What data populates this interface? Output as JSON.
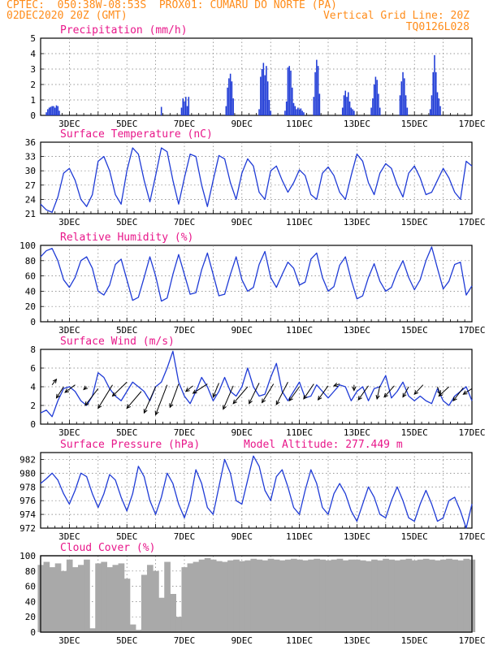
{
  "header": {
    "line1_left": "CPTEC:  050:38W-08:53S  PROX01: CUMARU DO NORTE (PA)",
    "line2_left": "02DEC2020 20Z (GMT)",
    "line2_right": "Vertical Grid Line: 20Z",
    "line3_right": "TQ0126L028"
  },
  "colors": {
    "header": "#ff8c1a",
    "panel_title": "#e8178a",
    "series": "#1f3bd6",
    "cloud": "#a9a9a9",
    "wind_arrow": "#000000"
  },
  "chart_data": [
    {
      "type": "bar",
      "title": "Precipitation (mm/h)",
      "ylim": [
        0,
        5
      ],
      "yticks": [
        "0",
        "1",
        "2",
        "3",
        "4",
        "5"
      ],
      "xticks": [
        "3DEC",
        "5DEC",
        "7DEC",
        "9DEC",
        "11DEC",
        "13DEC",
        "15DEC",
        "17DEC"
      ],
      "grid": true,
      "x": [
        2.2,
        2.25,
        2.3,
        2.35,
        2.4,
        2.45,
        2.5,
        2.55,
        2.6,
        2.65,
        6.2,
        6.9,
        6.95,
        7.0,
        7.05,
        7.1,
        7.15,
        8.45,
        8.5,
        8.55,
        8.6,
        8.65,
        8.7,
        9.6,
        9.65,
        9.7,
        9.75,
        9.8,
        9.85,
        9.9,
        9.95,
        10.0,
        10.5,
        10.55,
        10.6,
        10.65,
        10.7,
        10.75,
        10.8,
        10.85,
        10.9,
        10.95,
        11.0,
        11.05,
        11.1,
        11.15,
        11.5,
        11.55,
        11.6,
        11.65,
        11.7,
        12.5,
        12.55,
        12.6,
        12.65,
        12.7,
        12.75,
        12.8,
        12.85,
        12.9,
        13.5,
        13.55,
        13.6,
        13.65,
        13.7,
        13.75,
        13.8,
        14.5,
        14.55,
        14.6,
        14.65,
        14.7,
        14.75,
        15.55,
        15.6,
        15.65,
        15.7,
        15.75,
        15.8,
        15.85,
        15.9
      ],
      "values": [
        0.2,
        0.4,
        0.5,
        0.55,
        0.6,
        0.6,
        0.5,
        0.65,
        0.6,
        0.3,
        0.55,
        0.5,
        1.1,
        0.9,
        1.2,
        0.6,
        1.2,
        0.6,
        1.8,
        2.4,
        2.7,
        2.2,
        1.1,
        0.4,
        2.5,
        3.0,
        3.4,
        2.6,
        3.2,
        2.2,
        1.0,
        0.3,
        0.3,
        0.9,
        3.1,
        3.2,
        2.9,
        1.8,
        0.8,
        0.6,
        0.4,
        0.5,
        0.4,
        0.45,
        0.3,
        0.2,
        1.2,
        2.8,
        3.6,
        3.2,
        1.4,
        0.5,
        1.3,
        1.6,
        1.2,
        1.5,
        0.9,
        0.5,
        0.4,
        0.3,
        0.5,
        1.1,
        2.0,
        2.5,
        2.3,
        1.4,
        0.5,
        1.3,
        2.2,
        2.8,
        2.4,
        1.3,
        0.5,
        0.4,
        1.3,
        2.8,
        3.9,
        2.8,
        1.5,
        1.1,
        0.6
      ]
    },
    {
      "type": "line",
      "title": "Surface Temperature (nC)",
      "ylim": [
        21,
        36
      ],
      "yticks": [
        "21",
        "24",
        "27",
        "30",
        "33",
        "36"
      ],
      "xticks": [
        "3DEC",
        "5DEC",
        "7DEC",
        "9DEC",
        "11DEC",
        "13DEC",
        "15DEC",
        "17DEC"
      ],
      "grid": true,
      "x": [
        2.0,
        2.2,
        2.4,
        2.6,
        2.8,
        3.0,
        3.2,
        3.4,
        3.6,
        3.8,
        4.0,
        4.2,
        4.4,
        4.6,
        4.8,
        5.0,
        5.2,
        5.4,
        5.6,
        5.8,
        6.0,
        6.2,
        6.4,
        6.6,
        6.8,
        7.0,
        7.2,
        7.4,
        7.6,
        7.8,
        8.0,
        8.2,
        8.4,
        8.6,
        8.8,
        9.0,
        9.2,
        9.4,
        9.6,
        9.8,
        10.0,
        10.2,
        10.4,
        10.6,
        10.8,
        11.0,
        11.2,
        11.4,
        11.6,
        11.8,
        12.0,
        12.2,
        12.4,
        12.6,
        12.8,
        13.0,
        13.2,
        13.4,
        13.6,
        13.8,
        14.0,
        14.2,
        14.4,
        14.6,
        14.8,
        15.0,
        15.2,
        15.4,
        15.6,
        15.8,
        16.0,
        16.2,
        16.4,
        16.6,
        16.8,
        17.0
      ],
      "values": [
        23.0,
        21.8,
        21.3,
        24.5,
        29.5,
        30.5,
        28.0,
        24.0,
        22.5,
        25.0,
        32.0,
        33.0,
        30.0,
        25.0,
        23.0,
        30.0,
        34.8,
        33.5,
        28.0,
        23.5,
        29.0,
        34.8,
        34.0,
        28.0,
        23.0,
        28.5,
        33.5,
        33.0,
        27.0,
        22.5,
        28.0,
        33.2,
        32.5,
        27.5,
        24.0,
        29.5,
        32.5,
        31.0,
        25.5,
        24.0,
        30.0,
        31.0,
        28.0,
        25.5,
        27.5,
        30.2,
        29.0,
        25.0,
        24.0,
        29.5,
        30.8,
        29.0,
        25.5,
        24.0,
        29.0,
        33.5,
        32.0,
        27.5,
        25.0,
        29.5,
        31.5,
        30.5,
        27.0,
        24.5,
        29.5,
        31.0,
        28.5,
        25.0,
        25.5,
        28.0,
        30.5,
        28.5,
        25.5,
        24.0,
        32.0,
        31.0
      ]
    },
    {
      "type": "line",
      "title": "Relative Humidity (%)",
      "ylim": [
        0,
        100
      ],
      "yticks": [
        "0",
        "20",
        "40",
        "60",
        "80",
        "100"
      ],
      "xticks": [
        "3DEC",
        "5DEC",
        "7DEC",
        "9DEC",
        "11DEC",
        "13DEC",
        "15DEC",
        "17DEC"
      ],
      "grid": true,
      "x": [
        2.0,
        2.2,
        2.4,
        2.6,
        2.8,
        3.0,
        3.2,
        3.4,
        3.6,
        3.8,
        4.0,
        4.2,
        4.4,
        4.6,
        4.8,
        5.0,
        5.2,
        5.4,
        5.6,
        5.8,
        6.0,
        6.2,
        6.4,
        6.6,
        6.8,
        7.0,
        7.2,
        7.4,
        7.6,
        7.8,
        8.0,
        8.2,
        8.4,
        8.6,
        8.8,
        9.0,
        9.2,
        9.4,
        9.6,
        9.8,
        10.0,
        10.2,
        10.4,
        10.6,
        10.8,
        11.0,
        11.2,
        11.4,
        11.6,
        11.8,
        12.0,
        12.2,
        12.4,
        12.6,
        12.8,
        13.0,
        13.2,
        13.4,
        13.6,
        13.8,
        14.0,
        14.2,
        14.4,
        14.6,
        14.8,
        15.0,
        15.2,
        15.4,
        15.6,
        15.8,
        16.0,
        16.2,
        16.4,
        16.6,
        16.8,
        17.0
      ],
      "values": [
        85.0,
        93.0,
        96.0,
        80.0,
        55.0,
        45.0,
        58.0,
        80.0,
        85.0,
        70.0,
        40.0,
        35.0,
        48.0,
        75.0,
        82.0,
        55.0,
        28.0,
        32.0,
        58.0,
        85.0,
        60.0,
        27.0,
        31.0,
        62.0,
        88.0,
        62.0,
        36.0,
        38.0,
        68.0,
        90.0,
        62.0,
        34.0,
        36.0,
        62.0,
        85.0,
        55.0,
        40.0,
        45.0,
        75.0,
        92.0,
        58.0,
        45.0,
        62.0,
        78.0,
        70.0,
        48.0,
        52.0,
        82.0,
        90.0,
        58.0,
        40.0,
        46.0,
        74.0,
        85.0,
        55.0,
        30.0,
        34.0,
        58.0,
        76.0,
        53.0,
        40.0,
        45.0,
        65.0,
        80.0,
        58.0,
        42.0,
        55.0,
        80.0,
        98.0,
        70.0,
        43.0,
        53.0,
        75.0,
        78.0,
        35.0,
        47.0
      ]
    },
    {
      "type": "line",
      "title": "Surface Wind (m/s)",
      "ylim": [
        0,
        8
      ],
      "yticks": [
        "0",
        "2",
        "4",
        "6",
        "8"
      ],
      "xticks": [
        "3DEC",
        "5DEC",
        "7DEC",
        "9DEC",
        "11DEC",
        "13DEC",
        "15DEC",
        "17DEC"
      ],
      "grid": true,
      "x": [
        2.0,
        2.2,
        2.4,
        2.6,
        2.8,
        3.0,
        3.2,
        3.4,
        3.6,
        3.8,
        4.0,
        4.2,
        4.4,
        4.6,
        4.8,
        5.0,
        5.2,
        5.4,
        5.6,
        5.8,
        6.0,
        6.2,
        6.4,
        6.6,
        6.8,
        7.0,
        7.2,
        7.4,
        7.6,
        7.8,
        8.0,
        8.2,
        8.4,
        8.6,
        8.8,
        9.0,
        9.2,
        9.4,
        9.6,
        9.8,
        10.0,
        10.2,
        10.4,
        10.6,
        10.8,
        11.0,
        11.2,
        11.4,
        11.6,
        11.8,
        12.0,
        12.2,
        12.4,
        12.6,
        12.8,
        13.0,
        13.2,
        13.4,
        13.6,
        13.8,
        14.0,
        14.2,
        14.4,
        14.6,
        14.8,
        15.0,
        15.2,
        15.4,
        15.6,
        15.8,
        16.0,
        16.2,
        16.4,
        16.6,
        16.8,
        17.0
      ],
      "values": [
        1.2,
        1.5,
        0.8,
        2.5,
        3.8,
        4.0,
        3.5,
        2.5,
        2.0,
        3.0,
        5.5,
        5.0,
        3.8,
        3.0,
        2.5,
        3.5,
        4.5,
        4.0,
        3.5,
        2.5,
        4.0,
        4.5,
        6.0,
        7.8,
        4.5,
        3.0,
        2.2,
        3.5,
        5.0,
        4.0,
        2.5,
        3.5,
        5.0,
        3.5,
        3.0,
        4.0,
        6.0,
        4.0,
        3.0,
        3.2,
        5.0,
        6.5,
        3.5,
        2.5,
        3.5,
        4.5,
        2.8,
        3.0,
        4.2,
        3.5,
        2.8,
        3.5,
        4.2,
        4.0,
        2.5,
        3.5,
        4.0,
        2.5,
        3.8,
        4.0,
        5.2,
        2.8,
        3.5,
        4.5,
        3.0,
        2.5,
        3.0,
        2.5,
        2.2,
        3.8,
        2.5,
        2.0,
        3.0,
        3.5,
        4.0,
        2.5
      ]
    },
    {
      "type": "line",
      "title": "Surface Pressure (hPa)",
      "annotation": "Model Altitude: 277.449 m",
      "ylim": [
        972,
        983
      ],
      "yticks": [
        "972",
        "974",
        "976",
        "978",
        "980",
        "982"
      ],
      "xticks": [
        "3DEC",
        "5DEC",
        "7DEC",
        "9DEC",
        "11DEC",
        "13DEC",
        "15DEC",
        "17DEC"
      ],
      "grid": true,
      "x": [
        2.0,
        2.2,
        2.4,
        2.6,
        2.8,
        3.0,
        3.2,
        3.4,
        3.6,
        3.8,
        4.0,
        4.2,
        4.4,
        4.6,
        4.8,
        5.0,
        5.2,
        5.4,
        5.6,
        5.8,
        6.0,
        6.2,
        6.4,
        6.6,
        6.8,
        7.0,
        7.2,
        7.4,
        7.6,
        7.8,
        8.0,
        8.2,
        8.4,
        8.6,
        8.8,
        9.0,
        9.2,
        9.4,
        9.6,
        9.8,
        10.0,
        10.2,
        10.4,
        10.6,
        10.8,
        11.0,
        11.2,
        11.4,
        11.6,
        11.8,
        12.0,
        12.2,
        12.4,
        12.6,
        12.8,
        13.0,
        13.2,
        13.4,
        13.6,
        13.8,
        14.0,
        14.2,
        14.4,
        14.6,
        14.8,
        15.0,
        15.2,
        15.4,
        15.6,
        15.8,
        16.0,
        16.2,
        16.4,
        16.6,
        16.8,
        17.0
      ],
      "values": [
        978.5,
        979.2,
        980.0,
        979.0,
        977.0,
        975.5,
        977.5,
        980.0,
        979.5,
        977.0,
        975.0,
        977.0,
        979.8,
        979.0,
        976.5,
        974.5,
        977.0,
        981.0,
        979.5,
        976.0,
        974.0,
        976.5,
        980.0,
        978.5,
        975.5,
        973.5,
        976.0,
        980.5,
        978.5,
        975.0,
        974.0,
        978.0,
        982.0,
        980.0,
        976.0,
        975.5,
        979.0,
        982.5,
        981.0,
        977.5,
        976.0,
        979.5,
        980.5,
        978.0,
        975.0,
        974.0,
        977.5,
        980.5,
        978.5,
        975.0,
        974.0,
        977.0,
        978.5,
        977.0,
        974.5,
        973.0,
        975.5,
        978.0,
        976.5,
        974.0,
        973.5,
        976.0,
        978.0,
        976.0,
        973.5,
        973.0,
        975.5,
        977.5,
        975.5,
        973.0,
        973.5,
        976.0,
        976.5,
        974.5,
        972.0,
        975.5
      ]
    },
    {
      "type": "area",
      "title": "Cloud Cover (%)",
      "ylim": [
        0,
        100
      ],
      "yticks": [
        "0",
        "20",
        "40",
        "60",
        "80",
        "100"
      ],
      "xticks": [
        "3DEC",
        "5DEC",
        "7DEC",
        "9DEC",
        "11DEC",
        "13DEC",
        "15DEC",
        "17DEC"
      ],
      "grid": true,
      "x": [
        2.0,
        2.2,
        2.4,
        2.6,
        2.8,
        3.0,
        3.2,
        3.4,
        3.6,
        3.8,
        4.0,
        4.2,
        4.4,
        4.6,
        4.8,
        5.0,
        5.2,
        5.4,
        5.6,
        5.8,
        6.0,
        6.2,
        6.4,
        6.6,
        6.8,
        7.0,
        7.2,
        7.4,
        7.6,
        7.8,
        8.0,
        8.2,
        8.4,
        8.6,
        8.8,
        9.0,
        9.2,
        9.4,
        9.6,
        9.8,
        10.0,
        10.2,
        10.4,
        10.6,
        10.8,
        11.0,
        11.2,
        11.4,
        11.6,
        11.8,
        12.0,
        12.2,
        12.4,
        12.6,
        12.8,
        13.0,
        13.2,
        13.4,
        13.6,
        13.8,
        14.0,
        14.2,
        14.4,
        14.6,
        14.8,
        15.0,
        15.2,
        15.4,
        15.6,
        15.8,
        16.0,
        16.2,
        16.4,
        16.6,
        16.8,
        17.0
      ],
      "values": [
        88,
        92,
        85,
        90,
        80,
        95,
        85,
        88,
        95,
        5,
        90,
        92,
        85,
        88,
        90,
        70,
        10,
        3,
        75,
        88,
        80,
        45,
        92,
        50,
        20,
        85,
        90,
        92,
        95,
        97,
        95,
        93,
        92,
        94,
        95,
        93,
        94,
        96,
        95,
        94,
        96,
        95,
        94,
        95,
        96,
        95,
        94,
        95,
        96,
        95,
        94,
        95,
        96,
        94,
        95,
        95,
        94,
        93,
        95,
        94,
        96,
        95,
        94,
        95,
        96,
        94,
        95,
        96,
        95,
        94,
        95,
        96,
        95,
        94,
        96,
        95
      ]
    },
    {
      "type": "scatter",
      "title": "Surface Wind direction arrows",
      "x": [
        2.4,
        2.8,
        3.2,
        3.6,
        4.0,
        4.5,
        5.0,
        5.5,
        6.0,
        6.4,
        6.8,
        7.3,
        7.8,
        8.2,
        8.7,
        9.2,
        9.6,
        10.1,
        10.6,
        11.0,
        11.5,
        12.0,
        12.4,
        12.9,
        13.4,
        13.8,
        14.3,
        14.8,
        15.3,
        15.8,
        16.2,
        16.7,
        17.0
      ],
      "values": [
        4.2,
        4.0,
        4.2,
        4.0,
        3.8,
        4.2,
        4.5,
        3.5,
        4.0,
        4.2,
        4.3,
        4.1,
        4.3,
        4.4,
        4.1,
        4.0,
        4.4,
        4.3,
        4.5,
        4.0,
        4.3,
        4.1,
        4.3,
        4.2,
        4.1,
        4.1,
        4.1,
        4.0,
        4.2,
        4.0,
        4.0,
        3.9,
        3.8
      ],
      "dx": [
        0.15,
        -0.25,
        -0.35,
        -0.1,
        -0.45,
        -0.5,
        -0.5,
        -0.5,
        -0.4,
        -0.4,
        -0.3,
        -0.25,
        -0.5,
        -0.2,
        -0.35,
        -0.5,
        -0.35,
        -0.4,
        -0.4,
        -0.35,
        -0.35,
        -0.35,
        -0.2,
        0.0,
        -0.35,
        -0.1,
        -0.35,
        -0.2,
        -0.3,
        0.1,
        -0.35,
        -0.35,
        -0.3
      ],
      "dy": [
        0.6,
        -1.2,
        -0.8,
        -0.3,
        -1.8,
        -2.5,
        -1.5,
        -1.8,
        -2.8,
        -3.2,
        -2.5,
        -0.6,
        -1.0,
        -1.5,
        -2.5,
        -1.8,
        -2.2,
        -2.0,
        -2.4,
        -1.5,
        -1.6,
        -1.5,
        -0.2,
        -0.6,
        -1.5,
        -1.4,
        -1.2,
        -1.1,
        -1.0,
        -0.8,
        -1.0,
        -1.4,
        -0.6
      ]
    }
  ]
}
